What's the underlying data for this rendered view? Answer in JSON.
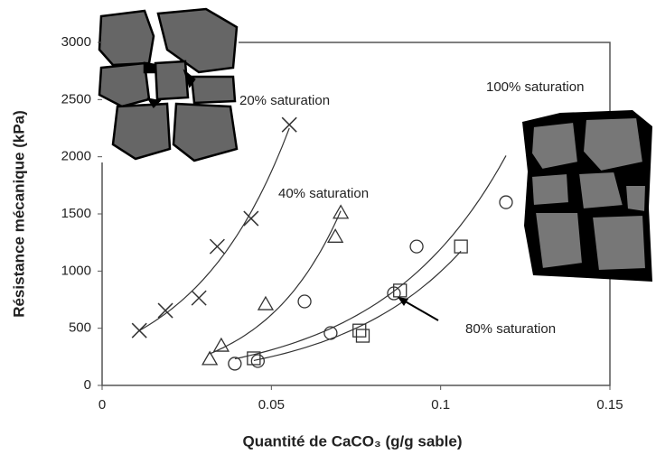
{
  "chart_data": {
    "type": "scatter",
    "x_label": "Quantité de CaCO₃ (g/g sable)",
    "y_label": "Résistance mécanique (kPa)",
    "xlim": [
      0,
      0.15
    ],
    "xticks": [
      0,
      0.05,
      0.1,
      0.15
    ],
    "ylim": [
      0,
      3000
    ],
    "yticks": [
      0,
      500,
      1000,
      1500,
      2000,
      2500,
      3000
    ],
    "series": [
      {
        "name": "20% saturation",
        "color": "#333333",
        "marker": "x",
        "x": [
          0.011,
          0.0187,
          0.0286,
          0.034,
          0.044,
          0.0553
        ],
        "values": [
          480,
          655,
          765,
          1215,
          1460,
          2280
        ]
      },
      {
        "name": "40% saturation",
        "color": "#333333",
        "marker": "triangle",
        "x": [
          0.0318,
          0.0352,
          0.0483,
          0.0689,
          0.0705
        ],
        "values": [
          230,
          347,
          710,
          1300,
          1510
        ]
      },
      {
        "name": "100% saturation",
        "color": "#333333",
        "marker": "circle",
        "x": [
          0.0392,
          0.046,
          0.0598,
          0.0675,
          0.0862,
          0.0929,
          0.1193
        ],
        "values": [
          190,
          213,
          734,
          458,
          805,
          1215,
          1602
        ]
      },
      {
        "name": "80% saturation",
        "color": "#333333",
        "marker": "square",
        "x": [
          0.0448,
          0.076,
          0.077,
          0.088,
          0.106
        ],
        "values": [
          237,
          480,
          434,
          830,
          1215
        ]
      }
    ]
  }
}
